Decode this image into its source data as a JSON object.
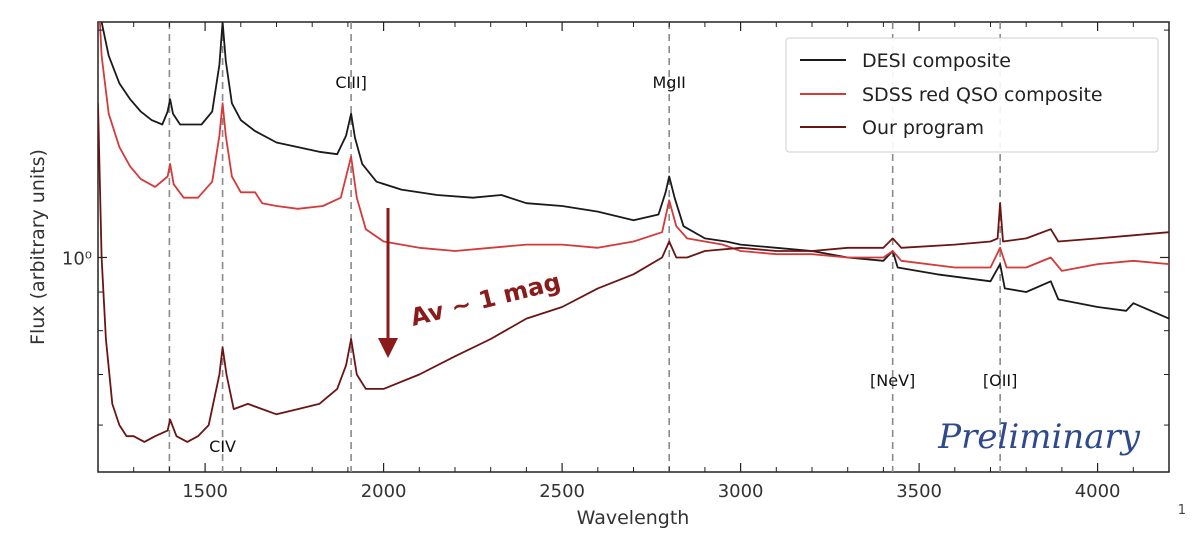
{
  "chart_data": {
    "type": "line",
    "xlabel": "Wavelength",
    "ylabel": "Flux (arbitrary units)",
    "xlim": [
      1200,
      4200
    ],
    "ylim": [
      0.52,
      2.05
    ],
    "yscale": "log",
    "xticks": [
      1500,
      2000,
      2500,
      3000,
      3500,
      4000
    ],
    "ytick_labels": [
      {
        "value": 1.0,
        "label": "10⁰"
      }
    ],
    "grid": false,
    "legend_position": "top-right",
    "series": [
      {
        "name": "DESI composite",
        "color": "#1a1a1a",
        "points": [
          [
            1200,
            2.6
          ],
          [
            1210,
            2.05
          ],
          [
            1230,
            1.85
          ],
          [
            1260,
            1.7
          ],
          [
            1290,
            1.62
          ],
          [
            1320,
            1.56
          ],
          [
            1350,
            1.52
          ],
          [
            1380,
            1.5
          ],
          [
            1395,
            1.56
          ],
          [
            1402,
            1.62
          ],
          [
            1410,
            1.55
          ],
          [
            1430,
            1.5
          ],
          [
            1460,
            1.5
          ],
          [
            1490,
            1.5
          ],
          [
            1520,
            1.56
          ],
          [
            1540,
            1.8
          ],
          [
            1549,
            2.05
          ],
          [
            1558,
            1.82
          ],
          [
            1575,
            1.6
          ],
          [
            1600,
            1.52
          ],
          [
            1640,
            1.47
          ],
          [
            1700,
            1.42
          ],
          [
            1760,
            1.4
          ],
          [
            1820,
            1.38
          ],
          [
            1870,
            1.37
          ],
          [
            1895,
            1.45
          ],
          [
            1909,
            1.55
          ],
          [
            1920,
            1.44
          ],
          [
            1940,
            1.33
          ],
          [
            1980,
            1.26
          ],
          [
            2050,
            1.23
          ],
          [
            2150,
            1.21
          ],
          [
            2250,
            1.2
          ],
          [
            2330,
            1.21
          ],
          [
            2400,
            1.18
          ],
          [
            2500,
            1.17
          ],
          [
            2600,
            1.15
          ],
          [
            2700,
            1.12
          ],
          [
            2770,
            1.14
          ],
          [
            2790,
            1.22
          ],
          [
            2800,
            1.28
          ],
          [
            2815,
            1.2
          ],
          [
            2840,
            1.1
          ],
          [
            2900,
            1.06
          ],
          [
            2960,
            1.05
          ],
          [
            3000,
            1.04
          ],
          [
            3100,
            1.03
          ],
          [
            3200,
            1.02
          ],
          [
            3300,
            1.0
          ],
          [
            3400,
            0.99
          ],
          [
            3426,
            1.02
          ],
          [
            3440,
            0.97
          ],
          [
            3550,
            0.95
          ],
          [
            3700,
            0.93
          ],
          [
            3727,
            0.98
          ],
          [
            3740,
            0.91
          ],
          [
            3800,
            0.9
          ],
          [
            3869,
            0.93
          ],
          [
            3890,
            0.88
          ],
          [
            4000,
            0.86
          ],
          [
            4080,
            0.85
          ],
          [
            4100,
            0.87
          ],
          [
            4200,
            0.83
          ]
        ]
      },
      {
        "name": "SDSS red QSO composite",
        "color": "#d43a3a",
        "points": [
          [
            1200,
            2.3
          ],
          [
            1210,
            1.85
          ],
          [
            1230,
            1.55
          ],
          [
            1260,
            1.4
          ],
          [
            1290,
            1.32
          ],
          [
            1320,
            1.27
          ],
          [
            1360,
            1.24
          ],
          [
            1395,
            1.28
          ],
          [
            1402,
            1.33
          ],
          [
            1412,
            1.25
          ],
          [
            1440,
            1.2
          ],
          [
            1480,
            1.2
          ],
          [
            1520,
            1.26
          ],
          [
            1540,
            1.45
          ],
          [
            1549,
            1.6
          ],
          [
            1558,
            1.45
          ],
          [
            1575,
            1.28
          ],
          [
            1600,
            1.22
          ],
          [
            1640,
            1.22
          ],
          [
            1660,
            1.18
          ],
          [
            1700,
            1.17
          ],
          [
            1760,
            1.16
          ],
          [
            1830,
            1.17
          ],
          [
            1880,
            1.2
          ],
          [
            1909,
            1.36
          ],
          [
            1925,
            1.2
          ],
          [
            1950,
            1.09
          ],
          [
            2000,
            1.05
          ],
          [
            2100,
            1.03
          ],
          [
            2200,
            1.02
          ],
          [
            2300,
            1.03
          ],
          [
            2400,
            1.04
          ],
          [
            2500,
            1.04
          ],
          [
            2600,
            1.03
          ],
          [
            2700,
            1.05
          ],
          [
            2780,
            1.08
          ],
          [
            2800,
            1.19
          ],
          [
            2820,
            1.1
          ],
          [
            2850,
            1.06
          ],
          [
            2950,
            1.04
          ],
          [
            3000,
            1.02
          ],
          [
            3100,
            1.01
          ],
          [
            3200,
            1.01
          ],
          [
            3300,
            1.0
          ],
          [
            3400,
            1.0
          ],
          [
            3426,
            1.02
          ],
          [
            3450,
            0.99
          ],
          [
            3600,
            0.97
          ],
          [
            3700,
            0.97
          ],
          [
            3727,
            1.03
          ],
          [
            3745,
            0.97
          ],
          [
            3800,
            0.97
          ],
          [
            3869,
            1.0
          ],
          [
            3900,
            0.96
          ],
          [
            4000,
            0.98
          ],
          [
            4100,
            0.99
          ],
          [
            4200,
            0.98
          ]
        ]
      },
      {
        "name": "Our program",
        "color": "#6b1414",
        "points": [
          [
            1200,
            1.6
          ],
          [
            1210,
            1.0
          ],
          [
            1222,
            0.78
          ],
          [
            1240,
            0.64
          ],
          [
            1260,
            0.6
          ],
          [
            1280,
            0.58
          ],
          [
            1300,
            0.58
          ],
          [
            1330,
            0.57
          ],
          [
            1360,
            0.58
          ],
          [
            1395,
            0.59
          ],
          [
            1402,
            0.61
          ],
          [
            1420,
            0.58
          ],
          [
            1450,
            0.57
          ],
          [
            1480,
            0.58
          ],
          [
            1510,
            0.6
          ],
          [
            1540,
            0.7
          ],
          [
            1549,
            0.76
          ],
          [
            1560,
            0.7
          ],
          [
            1580,
            0.63
          ],
          [
            1620,
            0.64
          ],
          [
            1660,
            0.63
          ],
          [
            1700,
            0.62
          ],
          [
            1760,
            0.63
          ],
          [
            1820,
            0.64
          ],
          [
            1870,
            0.67
          ],
          [
            1895,
            0.72
          ],
          [
            1909,
            0.78
          ],
          [
            1925,
            0.7
          ],
          [
            1950,
            0.67
          ],
          [
            2000,
            0.67
          ],
          [
            2100,
            0.7
          ],
          [
            2200,
            0.74
          ],
          [
            2300,
            0.78
          ],
          [
            2400,
            0.83
          ],
          [
            2500,
            0.86
          ],
          [
            2600,
            0.91
          ],
          [
            2700,
            0.95
          ],
          [
            2780,
            1.0
          ],
          [
            2800,
            1.05
          ],
          [
            2820,
            1.0
          ],
          [
            2850,
            1.0
          ],
          [
            2900,
            1.02
          ],
          [
            3000,
            1.03
          ],
          [
            3100,
            1.02
          ],
          [
            3200,
            1.02
          ],
          [
            3300,
            1.03
          ],
          [
            3400,
            1.03
          ],
          [
            3426,
            1.06
          ],
          [
            3450,
            1.03
          ],
          [
            3600,
            1.04
          ],
          [
            3700,
            1.05
          ],
          [
            3720,
            1.06
          ],
          [
            3727,
            1.18
          ],
          [
            3735,
            1.05
          ],
          [
            3800,
            1.06
          ],
          [
            3869,
            1.09
          ],
          [
            3890,
            1.05
          ],
          [
            4000,
            1.06
          ],
          [
            4100,
            1.07
          ],
          [
            4200,
            1.08
          ]
        ]
      }
    ],
    "emission_lines": [
      {
        "label": "CIV",
        "x": 1549
      },
      {
        "label": "CIII]",
        "x": 1909
      },
      {
        "label": "MgII",
        "x": 2800
      },
      {
        "label": "[NeV]",
        "x": 3426
      },
      {
        "label": "[OII]",
        "x": 3727
      },
      {
        "label": "",
        "x": 1400
      }
    ],
    "annotation": {
      "text": "Av ~ 1 mag",
      "color": "#8b1a1a"
    },
    "watermark": "Preliminary"
  },
  "page_number": "1"
}
